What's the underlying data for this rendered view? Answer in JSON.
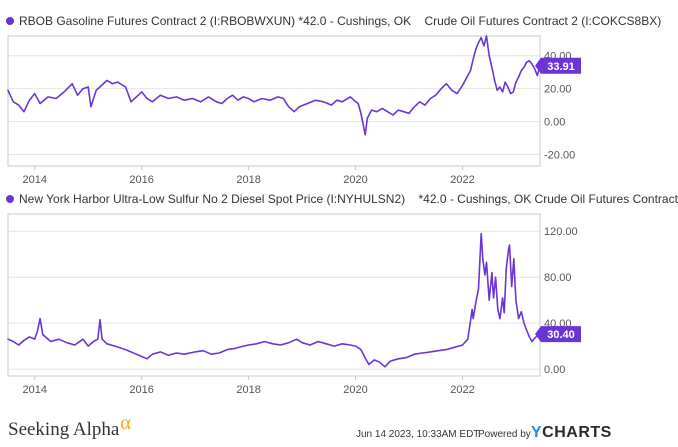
{
  "colors": {
    "series": "#6b35d6",
    "grid": "#e4e4e4",
    "axis": "#c8c8c8",
    "badge_text": "#ffffff"
  },
  "chart_data": [
    {
      "type": "line",
      "series": [
        {
          "name": "RBOB Gasoline Futures Contract 2 (I:RBOBWXUN) *42.0 - Cushings, OK    Crude Oil Futures Contract 2 (I:COKCS8BX)",
          "last_value_label": "33.91",
          "points": [
            [
              2013.5,
              19
            ],
            [
              2013.6,
              12
            ],
            [
              2013.7,
              10
            ],
            [
              2013.8,
              6
            ],
            [
              2013.9,
              13
            ],
            [
              2014.0,
              17
            ],
            [
              2014.1,
              11
            ],
            [
              2014.25,
              15
            ],
            [
              2014.4,
              14
            ],
            [
              2014.55,
              18
            ],
            [
              2014.7,
              23
            ],
            [
              2014.8,
              16
            ],
            [
              2014.9,
              20
            ],
            [
              2015.0,
              21
            ],
            [
              2015.05,
              9
            ],
            [
              2015.15,
              19
            ],
            [
              2015.25,
              22
            ],
            [
              2015.35,
              25
            ],
            [
              2015.45,
              23
            ],
            [
              2015.55,
              24
            ],
            [
              2015.7,
              21
            ],
            [
              2015.8,
              12
            ],
            [
              2015.9,
              15
            ],
            [
              2016.0,
              18
            ],
            [
              2016.1,
              14
            ],
            [
              2016.2,
              12
            ],
            [
              2016.35,
              16
            ],
            [
              2016.5,
              14
            ],
            [
              2016.65,
              15
            ],
            [
              2016.8,
              13
            ],
            [
              2016.95,
              14
            ],
            [
              2017.1,
              12
            ],
            [
              2017.25,
              15
            ],
            [
              2017.4,
              12
            ],
            [
              2017.5,
              11
            ],
            [
              2017.6,
              14
            ],
            [
              2017.7,
              16
            ],
            [
              2017.8,
              13
            ],
            [
              2017.9,
              15
            ],
            [
              2018.0,
              14
            ],
            [
              2018.1,
              12
            ],
            [
              2018.25,
              14
            ],
            [
              2018.4,
              13
            ],
            [
              2018.55,
              15
            ],
            [
              2018.65,
              14
            ],
            [
              2018.75,
              9
            ],
            [
              2018.85,
              6
            ],
            [
              2018.95,
              9
            ],
            [
              2019.1,
              11
            ],
            [
              2019.25,
              13
            ],
            [
              2019.4,
              12
            ],
            [
              2019.55,
              10
            ],
            [
              2019.65,
              13
            ],
            [
              2019.75,
              12
            ],
            [
              2019.9,
              15
            ],
            [
              2019.97,
              13
            ],
            [
              2020.05,
              11
            ],
            [
              2020.1,
              5
            ],
            [
              2020.15,
              -3
            ],
            [
              2020.18,
              -8
            ],
            [
              2020.22,
              2
            ],
            [
              2020.3,
              7
            ],
            [
              2020.4,
              6
            ],
            [
              2020.5,
              8
            ],
            [
              2020.6,
              6
            ],
            [
              2020.7,
              4
            ],
            [
              2020.8,
              7
            ],
            [
              2020.9,
              6
            ],
            [
              2021.0,
              5
            ],
            [
              2021.1,
              9
            ],
            [
              2021.2,
              12
            ],
            [
              2021.3,
              10
            ],
            [
              2021.4,
              14
            ],
            [
              2021.5,
              16
            ],
            [
              2021.6,
              20
            ],
            [
              2021.7,
              23
            ],
            [
              2021.8,
              19
            ],
            [
              2021.9,
              17
            ],
            [
              2022.0,
              22
            ],
            [
              2022.1,
              28
            ],
            [
              2022.15,
              31
            ],
            [
              2022.2,
              38
            ],
            [
              2022.25,
              44
            ],
            [
              2022.3,
              48
            ],
            [
              2022.35,
              51
            ],
            [
              2022.4,
              46
            ],
            [
              2022.45,
              52
            ],
            [
              2022.5,
              40
            ],
            [
              2022.55,
              33
            ],
            [
              2022.6,
              25
            ],
            [
              2022.65,
              19
            ],
            [
              2022.7,
              21
            ],
            [
              2022.75,
              18
            ],
            [
              2022.8,
              24
            ],
            [
              2022.85,
              21
            ],
            [
              2022.9,
              17
            ],
            [
              2022.95,
              18
            ],
            [
              2023.0,
              24
            ],
            [
              2023.05,
              27
            ],
            [
              2023.1,
              31
            ],
            [
              2023.15,
              33
            ],
            [
              2023.2,
              36
            ],
            [
              2023.25,
              37
            ],
            [
              2023.3,
              35
            ],
            [
              2023.35,
              32
            ],
            [
              2023.4,
              28
            ],
            [
              2023.45,
              33.91
            ]
          ]
        }
      ],
      "xlabel": "",
      "ylabel": "",
      "x_ticks": [
        2014,
        2016,
        2018,
        2020,
        2022
      ],
      "x_tick_labels": [
        "2014",
        "2016",
        "2018",
        "2020",
        "2022"
      ],
      "y_ticks": [
        -20,
        0,
        20,
        40
      ],
      "y_tick_labels": [
        "-20.00",
        "0.00",
        "20.00",
        "40.00"
      ],
      "xlim": [
        2013.5,
        2023.45
      ],
      "ylim": [
        -27,
        52
      ],
      "grid": true,
      "legend": "top-left"
    },
    {
      "type": "line",
      "series": [
        {
          "name": "New York Harbor Ultra-Low Sulfur No 2 Diesel Spot Price (I:NYHULSN2)    *42.0 - Cushings, OK Crude Oil Futures Contract",
          "last_value_label": "30.40",
          "points": [
            [
              2013.5,
              26
            ],
            [
              2013.6,
              24
            ],
            [
              2013.7,
              21
            ],
            [
              2013.8,
              25
            ],
            [
              2013.9,
              28
            ],
            [
              2014.0,
              26
            ],
            [
              2014.05,
              33
            ],
            [
              2014.1,
              44
            ],
            [
              2014.15,
              30
            ],
            [
              2014.3,
              24
            ],
            [
              2014.45,
              26
            ],
            [
              2014.6,
              23
            ],
            [
              2014.75,
              21
            ],
            [
              2014.9,
              26
            ],
            [
              2015.0,
              20
            ],
            [
              2015.1,
              24
            ],
            [
              2015.18,
              26
            ],
            [
              2015.22,
              43
            ],
            [
              2015.26,
              26
            ],
            [
              2015.35,
              22
            ],
            [
              2015.5,
              20
            ],
            [
              2015.7,
              17
            ],
            [
              2015.9,
              13
            ],
            [
              2016.0,
              11
            ],
            [
              2016.1,
              9
            ],
            [
              2016.2,
              13
            ],
            [
              2016.35,
              15
            ],
            [
              2016.5,
              12
            ],
            [
              2016.65,
              14
            ],
            [
              2016.8,
              13
            ],
            [
              2017.0,
              15
            ],
            [
              2017.15,
              16
            ],
            [
              2017.3,
              13
            ],
            [
              2017.45,
              14
            ],
            [
              2017.6,
              17
            ],
            [
              2017.75,
              18
            ],
            [
              2017.9,
              20
            ],
            [
              2018.0,
              21
            ],
            [
              2018.15,
              22
            ],
            [
              2018.3,
              24
            ],
            [
              2018.45,
              22
            ],
            [
              2018.6,
              21
            ],
            [
              2018.75,
              23
            ],
            [
              2018.9,
              26
            ],
            [
              2019.0,
              23
            ],
            [
              2019.15,
              21
            ],
            [
              2019.3,
              24
            ],
            [
              2019.45,
              22
            ],
            [
              2019.6,
              20
            ],
            [
              2019.75,
              22
            ],
            [
              2019.9,
              21
            ],
            [
              2020.0,
              20
            ],
            [
              2020.1,
              17
            ],
            [
              2020.2,
              8
            ],
            [
              2020.25,
              4
            ],
            [
              2020.35,
              8
            ],
            [
              2020.45,
              6
            ],
            [
              2020.55,
              2
            ],
            [
              2020.65,
              7
            ],
            [
              2020.8,
              9
            ],
            [
              2020.95,
              10
            ],
            [
              2021.1,
              13
            ],
            [
              2021.25,
              14
            ],
            [
              2021.4,
              15
            ],
            [
              2021.55,
              16
            ],
            [
              2021.7,
              17
            ],
            [
              2021.85,
              19
            ],
            [
              2022.0,
              21
            ],
            [
              2022.1,
              26
            ],
            [
              2022.15,
              42
            ],
            [
              2022.18,
              52
            ],
            [
              2022.2,
              44
            ],
            [
              2022.25,
              58
            ],
            [
              2022.3,
              70
            ],
            [
              2022.33,
              99
            ],
            [
              2022.35,
              118
            ],
            [
              2022.38,
              96
            ],
            [
              2022.42,
              82
            ],
            [
              2022.45,
              93
            ],
            [
              2022.5,
              60
            ],
            [
              2022.55,
              84
            ],
            [
              2022.58,
              62
            ],
            [
              2022.62,
              80
            ],
            [
              2022.66,
              52
            ],
            [
              2022.7,
              44
            ],
            [
              2022.75,
              62
            ],
            [
              2022.78,
              49
            ],
            [
              2022.82,
              88
            ],
            [
              2022.86,
              104
            ],
            [
              2022.88,
              108
            ],
            [
              2022.92,
              72
            ],
            [
              2022.96,
              96
            ],
            [
              2023.0,
              60
            ],
            [
              2023.05,
              44
            ],
            [
              2023.1,
              50
            ],
            [
              2023.15,
              40
            ],
            [
              2023.2,
              34
            ],
            [
              2023.25,
              28
            ],
            [
              2023.3,
              24
            ],
            [
              2023.35,
              27
            ],
            [
              2023.4,
              29
            ],
            [
              2023.45,
              30.4
            ]
          ]
        }
      ],
      "xlabel": "",
      "ylabel": "",
      "x_ticks": [
        2014,
        2016,
        2018,
        2020,
        2022
      ],
      "x_tick_labels": [
        "2014",
        "2016",
        "2018",
        "2020",
        "2022"
      ],
      "y_ticks": [
        0,
        40,
        80,
        120
      ],
      "y_tick_labels": [
        "0.00",
        "40.00",
        "80.00",
        "120.00"
      ],
      "xlim": [
        2013.5,
        2023.45
      ],
      "ylim": [
        -6,
        135
      ],
      "grid": true,
      "legend": "top-left"
    }
  ],
  "footer": {
    "brand": "Seeking Alpha",
    "brand_glyph": "α",
    "timestamp": "Jun 14 2023, 10:33AM EDT.",
    "powered_by": "Powered by",
    "ycharts_y": "Y",
    "ycharts_rest": "CHARTS"
  }
}
